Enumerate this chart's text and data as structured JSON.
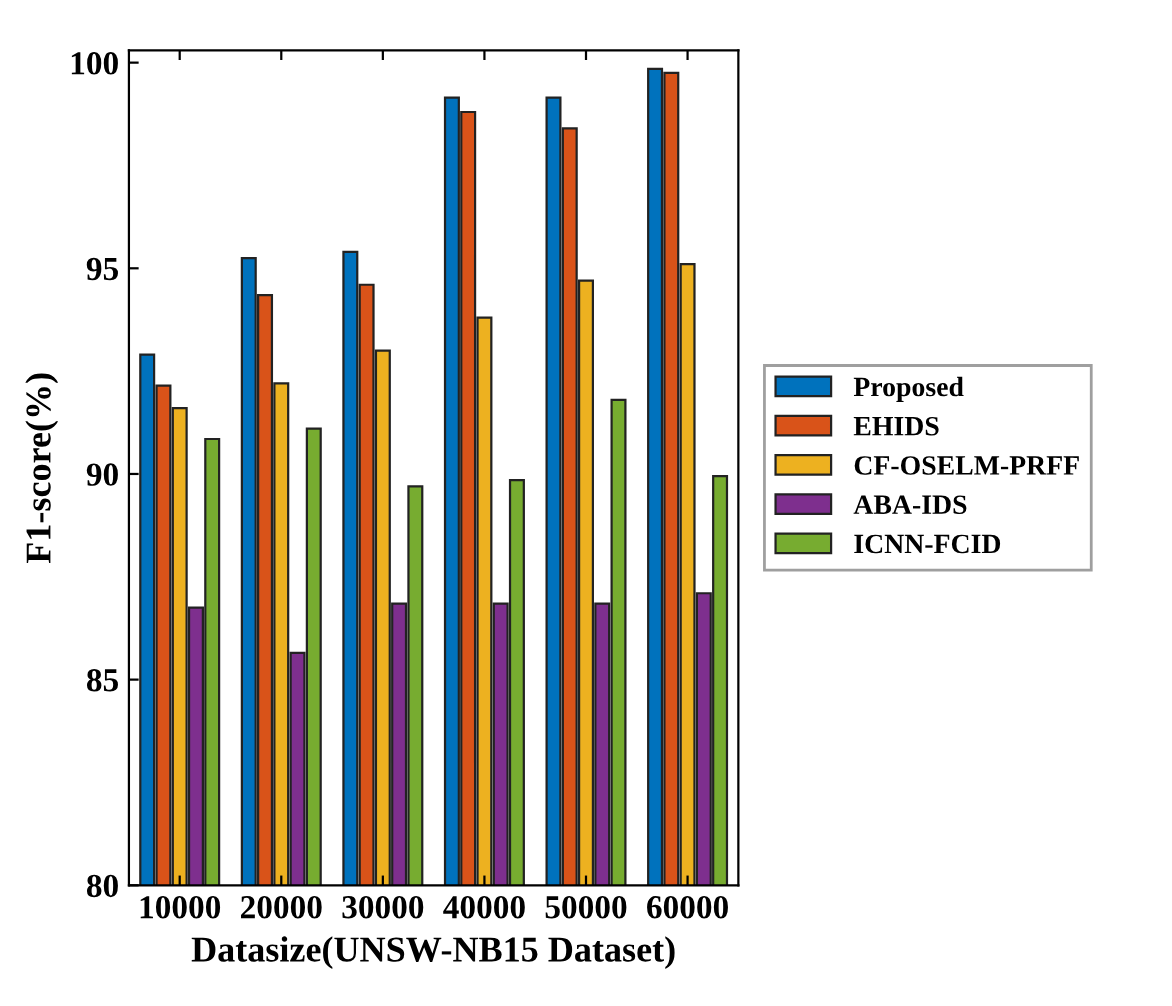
{
  "chart_data": {
    "type": "bar",
    "xlabel": "Datasize(UNSW-NB15 Dataset)",
    "ylabel": "F1-score(%)",
    "categories": [
      "10000",
      "20000",
      "30000",
      "40000",
      "50000",
      "60000"
    ],
    "series": [
      {
        "name": "Proposed",
        "color": "#0072bd",
        "values": [
          92.9,
          95.25,
          95.4,
          99.15,
          99.15,
          99.85
        ]
      },
      {
        "name": "EHIDS",
        "color": "#d95319",
        "values": [
          92.15,
          94.35,
          94.6,
          98.8,
          98.4,
          99.75
        ]
      },
      {
        "name": "CF-OSELM-PRFF",
        "color": "#edb120",
        "values": [
          91.6,
          92.2,
          93.0,
          93.8,
          94.7,
          95.1
        ]
      },
      {
        "name": "ABA-IDS",
        "color": "#7e2f8e",
        "values": [
          86.75,
          85.65,
          86.85,
          86.85,
          86.85,
          87.1
        ]
      },
      {
        "name": "ICNN-FCID",
        "color": "#77ac30",
        "values": [
          90.85,
          91.1,
          89.7,
          89.85,
          91.8,
          89.95
        ]
      }
    ],
    "ylim": [
      80,
      100.3
    ],
    "yticks": [
      80,
      85,
      90,
      95,
      100
    ],
    "grid": false,
    "legend": "right"
  }
}
